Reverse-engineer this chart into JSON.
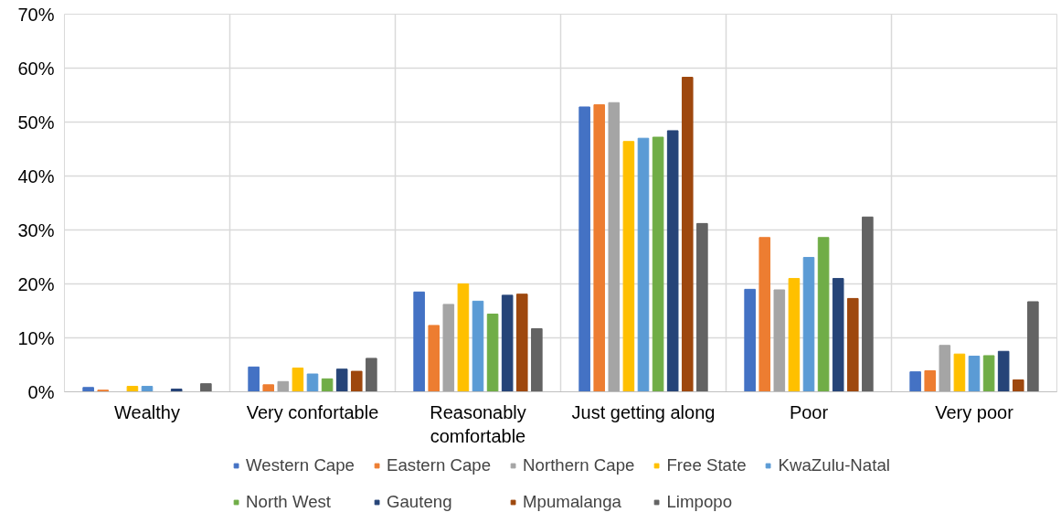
{
  "chart_data": {
    "type": "bar",
    "categories": [
      "Wealthy",
      "Very confortable",
      "Reasonably\ncomfortable",
      "Just getting along",
      "Poor",
      "Very poor"
    ],
    "series": [
      {
        "name": "Western Cape",
        "color": "#4472c4",
        "values": [
          0.8,
          4.6,
          18.5,
          52.8,
          19.0,
          3.7
        ]
      },
      {
        "name": "Eastern Cape",
        "color": "#ed7d31",
        "values": [
          0.3,
          1.3,
          12.3,
          53.2,
          28.6,
          3.9
        ]
      },
      {
        "name": "Northern Cape",
        "color": "#a5a5a5",
        "values": [
          0,
          1.9,
          16.2,
          53.6,
          18.9,
          8.6
        ]
      },
      {
        "name": "Free State",
        "color": "#ffc000",
        "values": [
          1.0,
          4.4,
          20.0,
          46.4,
          21.0,
          7.0
        ]
      },
      {
        "name": "KwaZulu-Natal",
        "color": "#5b9bd5",
        "values": [
          1.0,
          3.3,
          16.8,
          47.0,
          24.9,
          6.6
        ]
      },
      {
        "name": "North West",
        "color": "#70ad47",
        "values": [
          0,
          2.4,
          14.4,
          47.2,
          28.6,
          6.7
        ]
      },
      {
        "name": "Gauteng",
        "color": "#264478",
        "values": [
          0.5,
          4.2,
          17.9,
          48.4,
          21.0,
          7.5
        ]
      },
      {
        "name": "Mpumalanga",
        "color": "#9e480e",
        "values": [
          0,
          3.8,
          18.1,
          58.3,
          17.3,
          2.2
        ]
      },
      {
        "name": "Limpopo",
        "color": "#636363",
        "values": [
          1.5,
          6.2,
          11.7,
          31.2,
          32.4,
          16.7
        ]
      }
    ],
    "ylim": [
      0,
      70
    ],
    "yticks": [
      {
        "value": 0,
        "label": "0%"
      },
      {
        "value": 10,
        "label": "10%"
      },
      {
        "value": 20,
        "label": "20%"
      },
      {
        "value": 30,
        "label": "30%"
      },
      {
        "value": 40,
        "label": "40%"
      },
      {
        "value": 50,
        "label": "50%"
      },
      {
        "value": 60,
        "label": "60%"
      },
      {
        "value": 70,
        "label": "70%"
      }
    ],
    "grid": true,
    "legend": "bottom"
  }
}
